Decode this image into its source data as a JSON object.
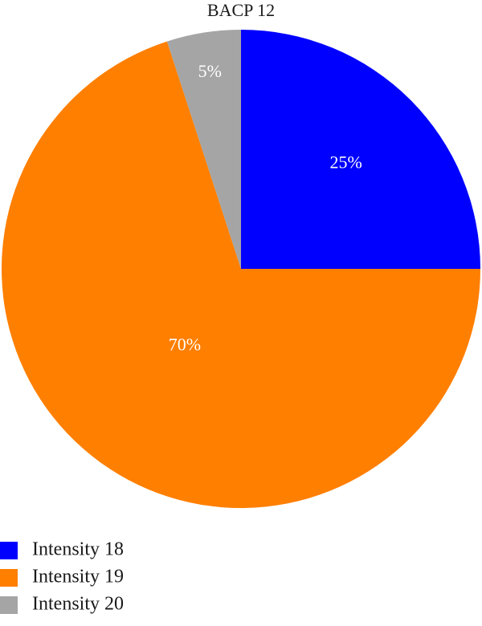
{
  "chart_data": {
    "type": "pie",
    "title": "BACP 12",
    "start_angle_deg": 0,
    "direction": "clockwise",
    "legend_position": "bottom-left",
    "slices": [
      {
        "label": "Intensity 18",
        "value": 25,
        "value_label": "25%",
        "color": "#0000ff"
      },
      {
        "label": "Intensity 19",
        "value": 70,
        "value_label": "70%",
        "color": "#ff7f00"
      },
      {
        "label": "Intensity 20",
        "value": 5,
        "value_label": "5%",
        "color": "#a5a5a5"
      }
    ]
  }
}
